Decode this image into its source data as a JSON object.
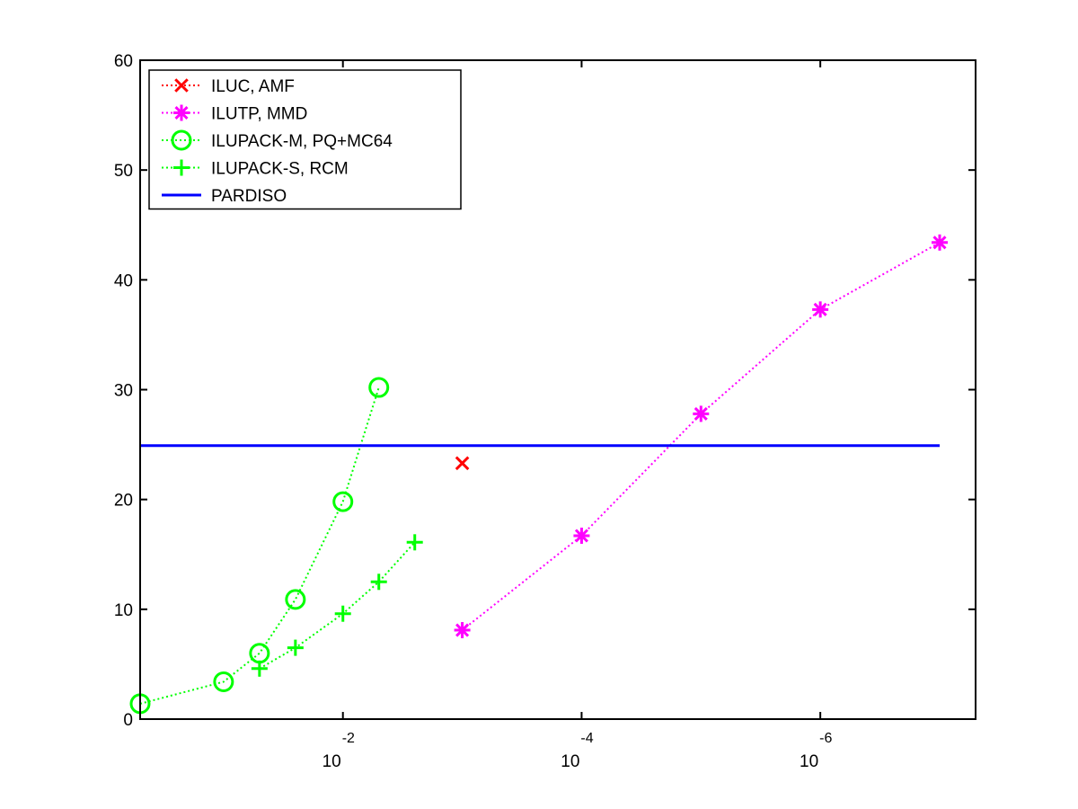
{
  "chart_data": {
    "type": "line",
    "x_scale": "log-reversed",
    "xlim": [
      0.5,
      5e-08
    ],
    "ylim": [
      0,
      60
    ],
    "y_ticks": [
      0,
      10,
      20,
      30,
      40,
      50,
      60
    ],
    "y_tick_labels": [
      "0",
      "10",
      "20",
      "30",
      "40",
      "50",
      "60"
    ],
    "x_ticks": [
      0.01,
      0.0001,
      1e-06
    ],
    "x_tick_labels": [
      {
        "base": "10",
        "exp": "-2"
      },
      {
        "base": "10",
        "exp": "-4"
      },
      {
        "base": "10",
        "exp": "-6"
      }
    ],
    "grid": false,
    "legend_position": "top-left",
    "series": [
      {
        "name": "ILUC, AMF",
        "color": "#ff0000",
        "marker": "x",
        "line": "dotted",
        "x": [
          0.001
        ],
        "y": [
          23.3
        ]
      },
      {
        "name": "ILUTP, MMD",
        "color": "#ff00ff",
        "marker": "asterisk",
        "line": "dotted",
        "x": [
          0.001,
          0.0001,
          1e-05,
          1e-06,
          1e-07
        ],
        "y": [
          8.1,
          16.7,
          27.8,
          37.3,
          43.4
        ]
      },
      {
        "name": "ILUPACK-M, PQ+MC64",
        "color": "#00ff00",
        "marker": "circle",
        "line": "dotted",
        "x": [
          0.5,
          0.1,
          0.05,
          0.025,
          0.01,
          0.005
        ],
        "y": [
          1.4,
          3.4,
          6.0,
          10.9,
          19.8,
          30.2
        ]
      },
      {
        "name": "ILUPACK-S, RCM",
        "color": "#00ff00",
        "marker": "plus",
        "line": "dotted",
        "x": [
          0.05,
          0.025,
          0.01,
          0.005,
          0.0025
        ],
        "y": [
          4.6,
          6.5,
          9.6,
          12.5,
          16.1
        ]
      },
      {
        "name": "PARDISO",
        "color": "#0000ff",
        "marker": "none",
        "line": "solid",
        "x": [
          0.5,
          1e-07
        ],
        "y": [
          24.9,
          24.9
        ]
      }
    ]
  }
}
